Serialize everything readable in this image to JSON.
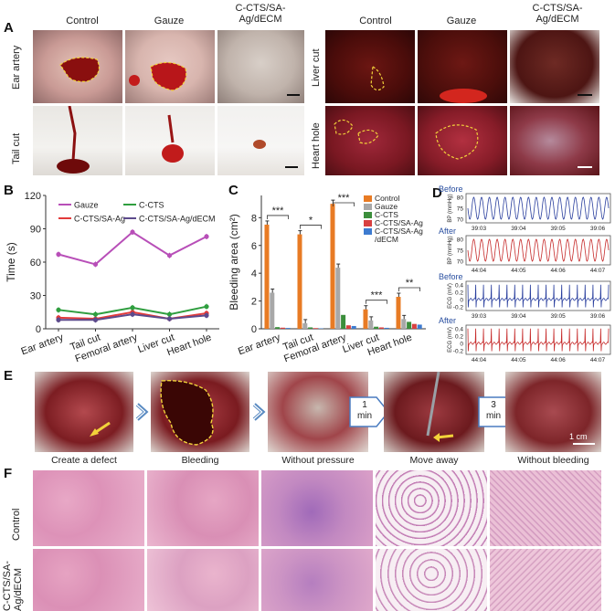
{
  "panels": {
    "A": "A",
    "B": "B",
    "C": "C",
    "D": "D",
    "E": "E",
    "F": "F"
  },
  "panelA": {
    "left_cols": [
      "Control",
      "Gauze",
      "C-CTS/SA-\nAg/dECM"
    ],
    "right_cols": [
      "Control",
      "Gauze",
      "C-CTS/SA-\nAg/dECM"
    ],
    "left_rows": [
      "Ear artery",
      "Tail cut"
    ],
    "right_rows": [
      "Liver cut",
      "Heart hole"
    ]
  },
  "chart_data": [
    {
      "type": "line",
      "panel": "B",
      "categories": [
        "Ear artery",
        "Tail cut",
        "Femoral artery",
        "Liver cut",
        "Heart hole"
      ],
      "ylabel": "Time (s)",
      "ylim": [
        0,
        120
      ],
      "yticks": [
        "0",
        "30",
        "60",
        "90",
        "120"
      ],
      "legend_position": "top",
      "series": [
        {
          "name": "Gauze",
          "color": "#b84fb8",
          "values": [
            67,
            58,
            87,
            66,
            83
          ]
        },
        {
          "name": "C-CTS/SA-Ag",
          "color": "#e23b3b",
          "values": [
            10,
            9,
            15,
            9,
            14
          ]
        },
        {
          "name": "C-CTS",
          "color": "#2f9e3f",
          "values": [
            17,
            13,
            19,
            13,
            20
          ]
        },
        {
          "name": "C-CTS/SA-Ag/dECM",
          "color": "#5c4a8c",
          "values": [
            8,
            8,
            13,
            9,
            12
          ]
        }
      ]
    },
    {
      "type": "bar",
      "panel": "C",
      "categories": [
        "Ear artery",
        "Tail cut",
        "Femoral artery",
        "Liver cut",
        "Heart hole"
      ],
      "ylabel": "Bleeding area (cm²)",
      "ylim": [
        0,
        9.6
      ],
      "yticks": [
        "0",
        "2",
        "4",
        "6",
        "8"
      ],
      "legend_position": "top-right",
      "series": [
        {
          "name": "Control",
          "color": "#e87b24",
          "values": [
            7.5,
            6.8,
            9.0,
            1.4,
            2.3
          ]
        },
        {
          "name": "Gauze",
          "color": "#a8a8a8",
          "values": [
            2.6,
            0.4,
            4.4,
            0.6,
            0.7
          ]
        },
        {
          "name": "C-CTS",
          "color": "#3b8e3b",
          "values": [
            0.12,
            0.1,
            1.0,
            0.15,
            0.5
          ]
        },
        {
          "name": "C-CTS/SA-Ag",
          "color": "#d84040",
          "values": [
            0.08,
            0.05,
            0.25,
            0.1,
            0.35
          ]
        },
        {
          "name": "C-CTS/SA-Ag\n/dECM",
          "color": "#3d7bd0",
          "values": [
            0.06,
            0.03,
            0.2,
            0.07,
            0.3
          ]
        }
      ],
      "significance": [
        "***",
        "*",
        "***",
        "***",
        "**"
      ]
    }
  ],
  "panelD": {
    "before": "Before",
    "after": "After",
    "bp_label": "BP (mmHg)",
    "ecg_label": "ECG (mV)",
    "bp_ticks": [
      "80",
      "75",
      "70"
    ],
    "ecg_ticks": [
      "0.4",
      "0.2",
      "0",
      "-0.2"
    ],
    "times_bp": [
      "39:03",
      "39:04",
      "39:05",
      "39:06"
    ],
    "times_after": [
      "44:04",
      "44:05",
      "44:06",
      "44:07"
    ]
  },
  "panelE": {
    "captions": [
      "Create a defect",
      "Bleeding",
      "Without pressure",
      "Move away",
      "Without bleeding"
    ],
    "step1": "1\nmin",
    "step2": "3\nmin",
    "scale": "1 cm"
  },
  "panelF": {
    "rows": [
      "Control",
      "C-CTS/SA-\nAg/dECM"
    ]
  }
}
